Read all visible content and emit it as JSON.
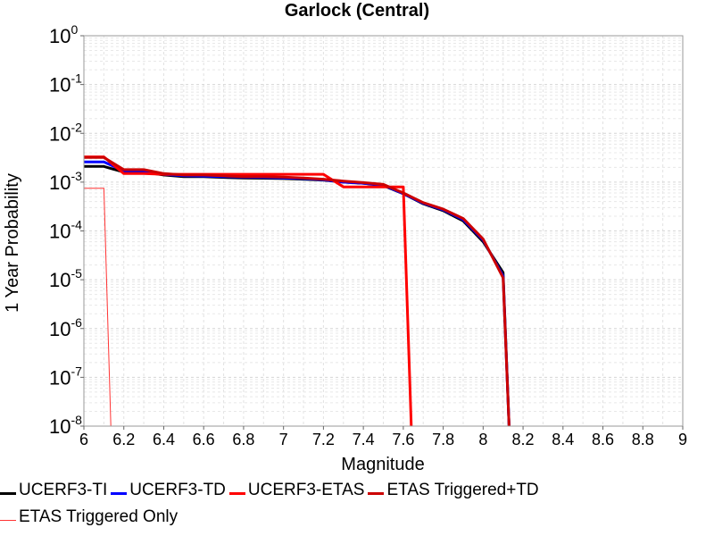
{
  "chart_data": {
    "type": "line",
    "title": "Garlock (Central)",
    "xlabel": "Magnitude",
    "ylabel": "1 Year Probability",
    "xlim": [
      6,
      9
    ],
    "ylim": [
      1e-08,
      1
    ],
    "yscale": "log",
    "grid": true,
    "legend_position": "bottom",
    "x_ticks": [
      "6",
      "6.2",
      "6.4",
      "6.6",
      "6.8",
      "7",
      "7.2",
      "7.4",
      "7.6",
      "7.8",
      "8",
      "8.2",
      "8.4",
      "8.6",
      "8.8",
      "9"
    ],
    "y_ticks": [
      {
        "base": "10",
        "exp": "0"
      },
      {
        "base": "10",
        "exp": "-1"
      },
      {
        "base": "10",
        "exp": "-2"
      },
      {
        "base": "10",
        "exp": "-3"
      },
      {
        "base": "10",
        "exp": "-4"
      },
      {
        "base": "10",
        "exp": "-5"
      },
      {
        "base": "10",
        "exp": "-6"
      },
      {
        "base": "10",
        "exp": "-7"
      },
      {
        "base": "10",
        "exp": "-8"
      }
    ],
    "series": [
      {
        "name": "UCERF3-TI",
        "color": "#000000",
        "width": 3,
        "points": [
          [
            6.0,
            0.0021
          ],
          [
            6.1,
            0.0021
          ],
          [
            6.2,
            0.0016
          ],
          [
            6.3,
            0.0016
          ],
          [
            6.4,
            0.0014
          ],
          [
            6.5,
            0.0013
          ],
          [
            6.6,
            0.0013
          ],
          [
            6.7,
            0.00125
          ],
          [
            6.8,
            0.00122
          ],
          [
            6.9,
            0.0012
          ],
          [
            7.0,
            0.00118
          ],
          [
            7.1,
            0.00115
          ],
          [
            7.2,
            0.0011
          ],
          [
            7.3,
            0.001
          ],
          [
            7.4,
            0.00095
          ],
          [
            7.5,
            0.00085
          ],
          [
            7.6,
            0.00058
          ],
          [
            7.7,
            0.00036
          ],
          [
            7.8,
            0.00026
          ],
          [
            7.9,
            0.00016
          ],
          [
            8.0,
            6e-05
          ],
          [
            8.1,
            1.4e-05
          ],
          [
            8.13,
            1e-08
          ]
        ]
      },
      {
        "name": "UCERF3-TD",
        "color": "#0000ff",
        "width": 3,
        "points": [
          [
            6.0,
            0.0026
          ],
          [
            6.1,
            0.0026
          ],
          [
            6.2,
            0.0017
          ],
          [
            6.3,
            0.0017
          ],
          [
            6.4,
            0.00145
          ],
          [
            6.5,
            0.00135
          ],
          [
            6.6,
            0.00133
          ],
          [
            6.7,
            0.0013
          ],
          [
            6.8,
            0.00127
          ],
          [
            6.9,
            0.00125
          ],
          [
            7.0,
            0.00122
          ],
          [
            7.1,
            0.00118
          ],
          [
            7.2,
            0.00112
          ],
          [
            7.3,
            0.001
          ],
          [
            7.4,
            0.00095
          ],
          [
            7.5,
            0.00087
          ],
          [
            7.6,
            0.00058
          ],
          [
            7.7,
            0.00037
          ],
          [
            7.8,
            0.00027
          ],
          [
            7.9,
            0.00017
          ],
          [
            8.0,
            6.5e-05
          ],
          [
            8.1,
            1.2e-05
          ],
          [
            8.13,
            1e-08
          ]
        ]
      },
      {
        "name": "UCERF3-ETAS",
        "color": "#ff0000",
        "width": 3,
        "points": [
          [
            6.0,
            0.0033
          ],
          [
            6.1,
            0.0033
          ],
          [
            6.2,
            0.0015
          ],
          [
            6.3,
            0.0015
          ],
          [
            6.4,
            0.00145
          ],
          [
            6.5,
            0.00145
          ],
          [
            6.6,
            0.00145
          ],
          [
            6.7,
            0.00145
          ],
          [
            6.8,
            0.00145
          ],
          [
            6.9,
            0.00145
          ],
          [
            7.0,
            0.00145
          ],
          [
            7.1,
            0.00145
          ],
          [
            7.2,
            0.00145
          ],
          [
            7.3,
            0.0008
          ],
          [
            7.4,
            0.0008
          ],
          [
            7.5,
            0.0008
          ],
          [
            7.6,
            0.0008
          ],
          [
            7.64,
            1e-08
          ]
        ]
      },
      {
        "name": "ETAS Triggered+TD",
        "color": "#cc0000",
        "width": 3,
        "points": [
          [
            6.0,
            0.0032
          ],
          [
            6.1,
            0.0032
          ],
          [
            6.2,
            0.0018
          ],
          [
            6.3,
            0.0018
          ],
          [
            6.4,
            0.0015
          ],
          [
            6.5,
            0.0014
          ],
          [
            6.6,
            0.0014
          ],
          [
            6.7,
            0.00135
          ],
          [
            6.8,
            0.0013
          ],
          [
            6.9,
            0.0013
          ],
          [
            7.0,
            0.00127
          ],
          [
            7.1,
            0.00122
          ],
          [
            7.2,
            0.00115
          ],
          [
            7.3,
            0.00105
          ],
          [
            7.4,
            0.00098
          ],
          [
            7.5,
            0.0009
          ],
          [
            7.6,
            0.0006
          ],
          [
            7.7,
            0.00038
          ],
          [
            7.8,
            0.00028
          ],
          [
            7.9,
            0.00018
          ],
          [
            8.0,
            6.8e-05
          ],
          [
            8.1,
            1.1e-05
          ],
          [
            8.13,
            1e-08
          ]
        ]
      },
      {
        "name": "ETAS Triggered Only",
        "color": "#ff3333",
        "width": 1,
        "points": [
          [
            6.0,
            0.00075
          ],
          [
            6.1,
            0.00075
          ],
          [
            6.135,
            1e-08
          ]
        ]
      }
    ]
  }
}
